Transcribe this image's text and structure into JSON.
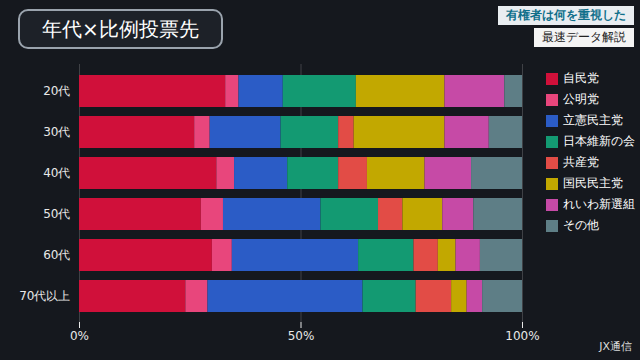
{
  "chart_data": {
    "type": "bar",
    "orientation": "horizontal",
    "stacked": true,
    "title": "年代×比例投票先",
    "subtitle": "最速データ解説",
    "banner": "有権者は何を重視した",
    "source": "JX通信",
    "categories": [
      "20代",
      "30代",
      "40代",
      "50代",
      "60代",
      "70代以上"
    ],
    "series": [
      {
        "name": "自民党",
        "color": "#d0103a",
        "values": [
          33,
          26,
          31,
          27.5,
          30,
          24
        ]
      },
      {
        "name": "公明党",
        "color": "#e8467c",
        "values": [
          3,
          3.5,
          4,
          5,
          4.5,
          5
        ]
      },
      {
        "name": "立憲民主党",
        "color": "#2b5cc6",
        "values": [
          10,
          16,
          12,
          22,
          28.5,
          35
        ]
      },
      {
        "name": "日本維新の会",
        "color": "#139a72",
        "values": [
          16.5,
          13,
          11.5,
          13,
          12.5,
          12
        ]
      },
      {
        "name": "共産党",
        "color": "#e24c46",
        "values": [
          0,
          3.5,
          6.5,
          5.5,
          5.5,
          8
        ]
      },
      {
        "name": "国民民主党",
        "color": "#c2a800",
        "values": [
          20,
          20.5,
          13,
          9,
          4,
          3.5
        ]
      },
      {
        "name": "れいわ新選組",
        "color": "#c64aa6",
        "values": [
          13.5,
          10,
          10.5,
          7,
          5.5,
          3.5
        ]
      },
      {
        "name": "その他",
        "color": "#5e7e86",
        "values": [
          4,
          7.5,
          11.5,
          11,
          9.5,
          9
        ]
      }
    ],
    "xlim": [
      0,
      100
    ],
    "xticks": [
      {
        "value": 0,
        "label": "0%"
      },
      {
        "value": 50,
        "label": "50%"
      },
      {
        "value": 100,
        "label": "100%"
      }
    ],
    "grid": true,
    "legend": "right",
    "data_labels": false
  }
}
